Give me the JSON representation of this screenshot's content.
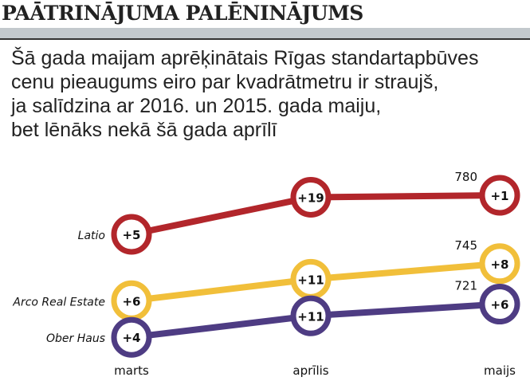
{
  "header": {
    "title": "PAĀTRINĀJUMA PALĒNINĀJUMS",
    "subtitle_lines": [
      "Šā gada maijam aprēķinātais Rīgas standartapbūves",
      "cenu pieaugums eiro par kvadrātmetru ir straujš,",
      "ja salīdzina ar 2016. un 2015. gada maiju,",
      "bet lēnāks nekā šā gada aprīlī"
    ]
  },
  "chart_data": {
    "type": "line",
    "title": "PAĀTRINĀJUMA PALĒNINĀJUMS",
    "categories": [
      "marts",
      "aprīlis",
      "maijs"
    ],
    "ylabel": "EUR/m²",
    "series": [
      {
        "name": "Latio",
        "color": "#b2262b",
        "values": [
          760,
          779,
          780
        ],
        "changes": [
          "+5",
          "+19",
          "+1"
        ],
        "end_label": "780"
      },
      {
        "name": "Arco Real Estate",
        "color": "#f1bf3a",
        "values": [
          726,
          737,
          745
        ],
        "changes": [
          "+6",
          "+11",
          "+8"
        ],
        "end_label": "745"
      },
      {
        "name": "Ober Haus",
        "color": "#4e3c83",
        "values": [
          704,
          715,
          721
        ],
        "changes": [
          "+4",
          "+11",
          "+6"
        ],
        "end_label": "721"
      }
    ]
  }
}
